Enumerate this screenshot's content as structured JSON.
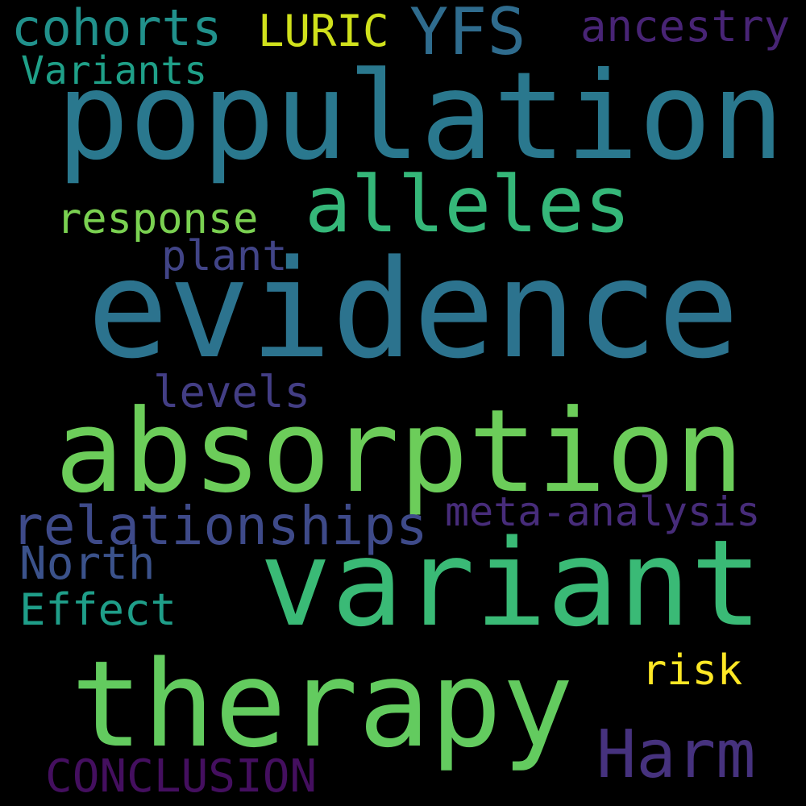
{
  "words": {
    "population": {
      "text": "population",
      "color": "#2a788e"
    },
    "evidence": {
      "text": "evidence",
      "color": "#2c738e"
    },
    "absorption": {
      "text": "absorption",
      "color": "#6ccd5a"
    },
    "variant": {
      "text": "variant",
      "color": "#3aba76"
    },
    "therapy": {
      "text": "therapy",
      "color": "#63cb5f"
    },
    "alleles": {
      "text": "alleles",
      "color": "#35b779"
    },
    "yfs": {
      "text": "YFS",
      "color": "#2f6c8e"
    },
    "cohorts": {
      "text": "cohorts",
      "color": "#21918c"
    },
    "luric": {
      "text": "LURIC",
      "color": "#d0e11c"
    },
    "ancestry": {
      "text": "ancestry",
      "color": "#482475"
    },
    "variants": {
      "text": "Variants",
      "color": "#1fa088"
    },
    "response": {
      "text": "response",
      "color": "#7ad151"
    },
    "plant": {
      "text": "plant",
      "color": "#414487"
    },
    "levels": {
      "text": "levels",
      "color": "#433e85"
    },
    "relationships": {
      "text": "relationships",
      "color": "#3e4a89"
    },
    "meta_analysis": {
      "text": "meta-analysis",
      "color": "#472c7a"
    },
    "north": {
      "text": "North",
      "color": "#3b528b"
    },
    "effect": {
      "text": "Effect",
      "color": "#1f9e89"
    },
    "risk": {
      "text": "risk",
      "color": "#fde725"
    },
    "harm": {
      "text": "Harm",
      "color": "#46327e"
    },
    "conclusion": {
      "text": "CONCLUSION",
      "color": "#440f5f"
    }
  }
}
